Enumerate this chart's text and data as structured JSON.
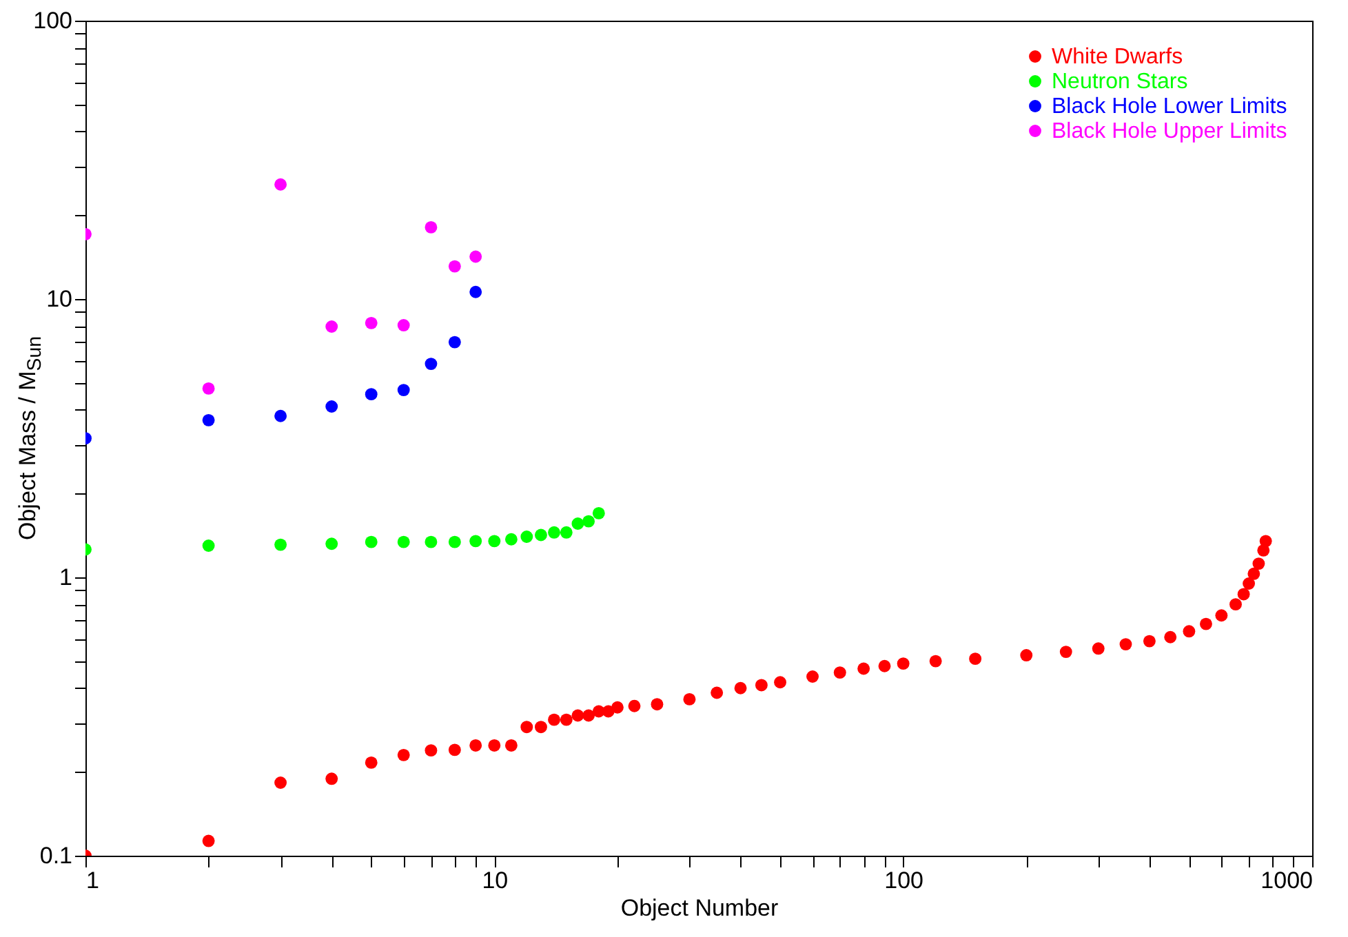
{
  "chart_data": {
    "type": "scatter",
    "xlabel": "Object Number",
    "ylabel": "Object Mass / M$_{Sun}$",
    "log": "xy",
    "grid": false,
    "legend": "top right",
    "marker": "circle",
    "xlim": [
      1,
      1000
    ],
    "ylim": [
      0.1,
      100
    ],
    "xticks": [
      1,
      {
        "value": 2,
        "label": null
      },
      {
        "value": 3,
        "label": null
      },
      {
        "value": 4,
        "label": null
      },
      {
        "value": 5,
        "label": null
      },
      {
        "value": 6,
        "label": null
      },
      {
        "value": 7,
        "label": null
      },
      {
        "value": 8,
        "label": null
      },
      {
        "value": 9,
        "label": null
      },
      10,
      {
        "value": 20,
        "label": null
      },
      {
        "value": 30,
        "label": null
      },
      {
        "value": 40,
        "label": null
      },
      {
        "value": 50,
        "label": null
      },
      {
        "value": 60,
        "label": null
      },
      {
        "value": 70,
        "label": null
      },
      {
        "value": 80,
        "label": null
      },
      {
        "value": 90,
        "label": null
      },
      100,
      {
        "value": 200,
        "label": null
      },
      {
        "value": 300,
        "label": null
      },
      {
        "value": 400,
        "label": null
      },
      {
        "value": 500,
        "label": null
      },
      {
        "value": 600,
        "label": null
      },
      {
        "value": 700,
        "label": null
      },
      {
        "value": 800,
        "label": null
      },
      {
        "value": 900,
        "label": null
      },
      1000
    ],
    "yticks": [
      0.1,
      {
        "value": 0.2,
        "label": null
      },
      {
        "value": 0.3,
        "label": null
      },
      {
        "value": 0.4,
        "label": null
      },
      {
        "value": 0.5,
        "label": null
      },
      {
        "value": 0.6,
        "label": null
      },
      {
        "value": 0.7,
        "label": null
      },
      {
        "value": 0.8,
        "label": null
      },
      {
        "value": 0.9,
        "label": null
      },
      1,
      {
        "value": 2,
        "label": null
      },
      {
        "value": 3,
        "label": null
      },
      {
        "value": 4,
        "label": null
      },
      {
        "value": 5,
        "label": null
      },
      {
        "value": 6,
        "label": null
      },
      {
        "value": 7,
        "label": null
      },
      {
        "value": 8,
        "label": null
      },
      {
        "value": 9,
        "label": null
      },
      10,
      {
        "value": 20,
        "label": null
      },
      {
        "value": 30,
        "label": null
      },
      {
        "value": 40,
        "label": null
      },
      {
        "value": 50,
        "label": null
      },
      {
        "value": 60,
        "label": null
      },
      {
        "value": 70,
        "label": null
      },
      {
        "value": 80,
        "label": null
      },
      {
        "value": 90,
        "label": null
      },
      100
    ],
    "series": [
      {
        "name": "White Dwarfs",
        "color": "#ff0000",
        "x": [
          1,
          2,
          3,
          4,
          5,
          6,
          7,
          8,
          9,
          10,
          11,
          12,
          13,
          14,
          15,
          16,
          17,
          18,
          19,
          20,
          22,
          25,
          30,
          35,
          40,
          45,
          50,
          60,
          70,
          80,
          90,
          100,
          120,
          150,
          200,
          250,
          300,
          350,
          400,
          450,
          500,
          550,
          600,
          650,
          680,
          700,
          720,
          740,
          760,
          770
        ],
        "values": [
          0.1,
          0.113,
          0.183,
          0.189,
          0.216,
          0.23,
          0.239,
          0.24,
          0.249,
          0.249,
          0.249,
          0.29,
          0.29,
          0.308,
          0.308,
          0.319,
          0.319,
          0.33,
          0.33,
          0.341,
          0.345,
          0.35,
          0.365,
          0.385,
          0.4,
          0.41,
          0.42,
          0.44,
          0.455,
          0.47,
          0.48,
          0.49,
          0.5,
          0.51,
          0.525,
          0.54,
          0.555,
          0.575,
          0.59,
          0.61,
          0.64,
          0.68,
          0.73,
          0.8,
          0.87,
          0.95,
          1.03,
          1.12,
          1.25,
          1.35
        ]
      },
      {
        "name": "Neutron Stars",
        "color": "#00ff00",
        "x": [
          1,
          2,
          3,
          4,
          5,
          6,
          7,
          8,
          9,
          10,
          11,
          12,
          13,
          14,
          15,
          16,
          17,
          18
        ],
        "values": [
          1.26,
          1.3,
          1.31,
          1.32,
          1.34,
          1.34,
          1.34,
          1.34,
          1.35,
          1.35,
          1.37,
          1.4,
          1.42,
          1.45,
          1.45,
          1.56,
          1.59,
          1.7
        ]
      },
      {
        "name": "Black Hole Lower Limits",
        "color": "#0000ff",
        "x": [
          1,
          2,
          3,
          4,
          5,
          6,
          7,
          8,
          9
        ],
        "values": [
          3.16,
          3.67,
          3.8,
          4.11,
          4.55,
          4.71,
          5.85,
          7.0,
          10.6
        ]
      },
      {
        "name": "Black Hole Upper Limits",
        "color": "#ff00ff",
        "x": [
          1,
          2,
          3,
          4,
          5,
          6,
          7,
          8,
          9
        ],
        "values": [
          17.1,
          4.77,
          25.8,
          7.96,
          8.2,
          8.05,
          18.1,
          13.1,
          14.2
        ]
      }
    ]
  }
}
